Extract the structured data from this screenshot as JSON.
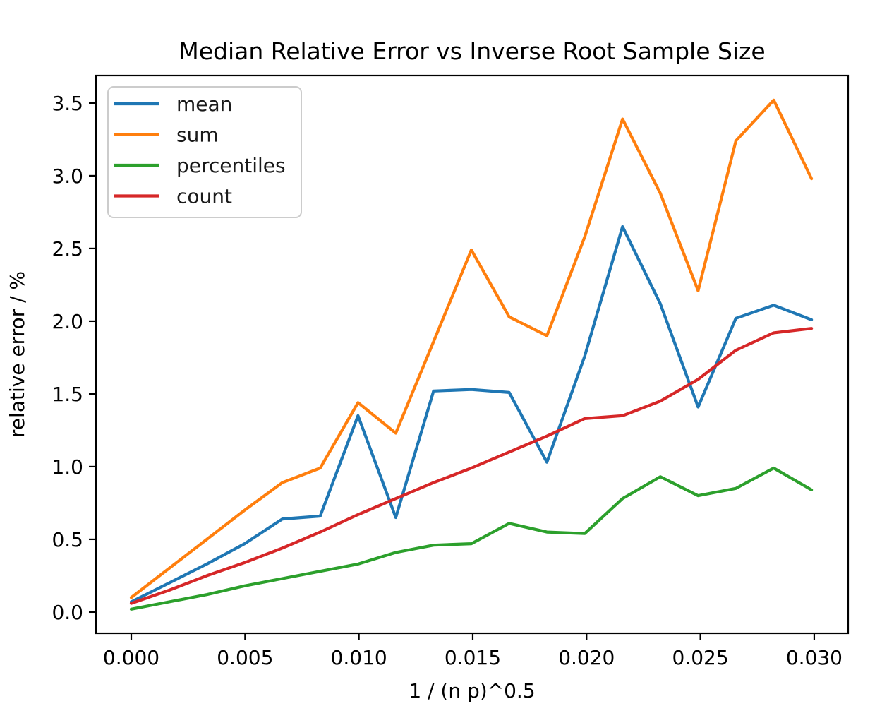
{
  "figure": {
    "background": "#ffffff"
  },
  "chart_data": {
    "type": "line",
    "title": "Median Relative Error vs Inverse Root Sample Size",
    "xlabel": "1 / (n p)^0.5",
    "ylabel": "relative error / %",
    "grid": false,
    "legend_position": "upper left",
    "xlim": [
      -0.00155,
      0.03149
    ],
    "ylim": [
      -0.146,
      3.689
    ],
    "x_ticks": {
      "values": [
        0.0,
        0.005,
        0.01,
        0.015,
        0.02,
        0.025,
        0.03
      ],
      "labels": [
        "0.000",
        "0.005",
        "0.010",
        "0.015",
        "0.020",
        "0.025",
        "0.030"
      ]
    },
    "y_ticks": {
      "values": [
        0.0,
        0.5,
        1.0,
        1.5,
        2.0,
        2.5,
        3.0,
        3.5
      ],
      "labels": [
        "0.0",
        "0.5",
        "1.0",
        "1.5",
        "2.0",
        "2.5",
        "3.0",
        "3.5"
      ]
    },
    "x": [
      0.0,
      0.00166,
      0.00332,
      0.00498,
      0.00664,
      0.0083,
      0.00996,
      0.01162,
      0.01328,
      0.01494,
      0.0166,
      0.01826,
      0.01992,
      0.02158,
      0.02324,
      0.0249,
      0.02656,
      0.02822,
      0.02988
    ],
    "series": [
      {
        "name": "mean",
        "color": "#1f77b4",
        "values": [
          0.07,
          0.2,
          0.33,
          0.47,
          0.64,
          0.66,
          1.35,
          0.65,
          1.52,
          1.53,
          1.51,
          1.03,
          1.76,
          2.65,
          2.12,
          1.41,
          2.02,
          2.11,
          2.01
        ]
      },
      {
        "name": "sum",
        "color": "#ff7f0e",
        "values": [
          0.1,
          0.3,
          0.5,
          0.7,
          0.89,
          0.99,
          1.44,
          1.23,
          1.86,
          2.49,
          2.03,
          1.9,
          2.58,
          3.39,
          2.88,
          2.21,
          3.24,
          3.52,
          2.98
        ]
      },
      {
        "name": "percentiles",
        "color": "#2ca02c",
        "values": [
          0.02,
          0.07,
          0.12,
          0.18,
          0.23,
          0.28,
          0.33,
          0.41,
          0.46,
          0.47,
          0.61,
          0.55,
          0.54,
          0.78,
          0.93,
          0.8,
          0.85,
          0.99,
          0.84
        ]
      },
      {
        "name": "count",
        "color": "#d62728",
        "values": [
          0.06,
          0.15,
          0.25,
          0.34,
          0.44,
          0.55,
          0.67,
          0.78,
          0.89,
          0.99,
          1.1,
          1.21,
          1.33,
          1.35,
          1.45,
          1.6,
          1.8,
          1.92,
          1.95
        ]
      }
    ]
  }
}
